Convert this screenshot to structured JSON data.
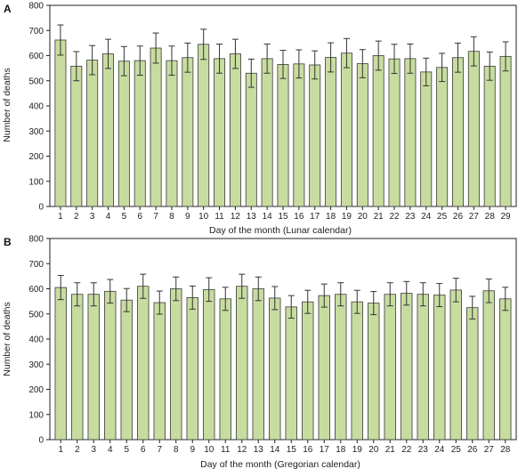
{
  "chart_data": [
    {
      "panel": "A",
      "type": "bar",
      "xlabel": "Day of the month (Lunar calendar)",
      "ylabel": "Number of deaths",
      "ylim": [
        0,
        800
      ],
      "yticks": [
        0,
        100,
        200,
        300,
        400,
        500,
        600,
        700,
        800
      ],
      "categories": [
        "1",
        "2",
        "3",
        "4",
        "5",
        "6",
        "7",
        "8",
        "9",
        "10",
        "11",
        "12",
        "13",
        "14",
        "15",
        "16",
        "17",
        "18",
        "19",
        "20",
        "21",
        "22",
        "23",
        "24",
        "25",
        "26",
        "27",
        "28",
        "29"
      ],
      "values": [
        662,
        558,
        582,
        607,
        578,
        580,
        630,
        580,
        592,
        645,
        588,
        607,
        530,
        588,
        565,
        567,
        563,
        593,
        610,
        568,
        600,
        587,
        588,
        535,
        553,
        592,
        617,
        558,
        597
      ],
      "error": [
        60,
        58,
        58,
        58,
        58,
        58,
        60,
        58,
        58,
        60,
        58,
        58,
        56,
        58,
        56,
        56,
        56,
        58,
        58,
        56,
        58,
        58,
        58,
        55,
        56,
        58,
        58,
        56,
        58
      ],
      "bar_color": "#c8dca0",
      "grid": false
    },
    {
      "panel": "B",
      "type": "bar",
      "xlabel": "Day of the month (Gregorian calendar)",
      "ylabel": "Number of deaths",
      "ylim": [
        0,
        800
      ],
      "yticks": [
        0,
        100,
        200,
        300,
        400,
        500,
        600,
        700,
        800
      ],
      "categories": [
        "1",
        "2",
        "3",
        "4",
        "5",
        "6",
        "7",
        "8",
        "9",
        "10",
        "11",
        "12",
        "13",
        "14",
        "15",
        "16",
        "17",
        "18",
        "19",
        "20",
        "21",
        "22",
        "23",
        "24",
        "25",
        "26",
        "27",
        "28"
      ],
      "values": [
        605,
        578,
        578,
        590,
        555,
        610,
        545,
        600,
        565,
        597,
        560,
        610,
        600,
        563,
        528,
        548,
        573,
        578,
        548,
        543,
        578,
        582,
        578,
        575,
        595,
        525,
        592,
        560
      ],
      "error": [
        48,
        46,
        46,
        47,
        46,
        48,
        46,
        47,
        46,
        47,
        46,
        48,
        47,
        46,
        45,
        46,
        46,
        46,
        46,
        46,
        46,
        47,
        46,
        46,
        47,
        45,
        47,
        46
      ],
      "bar_color": "#c8dca0",
      "grid": false
    }
  ]
}
